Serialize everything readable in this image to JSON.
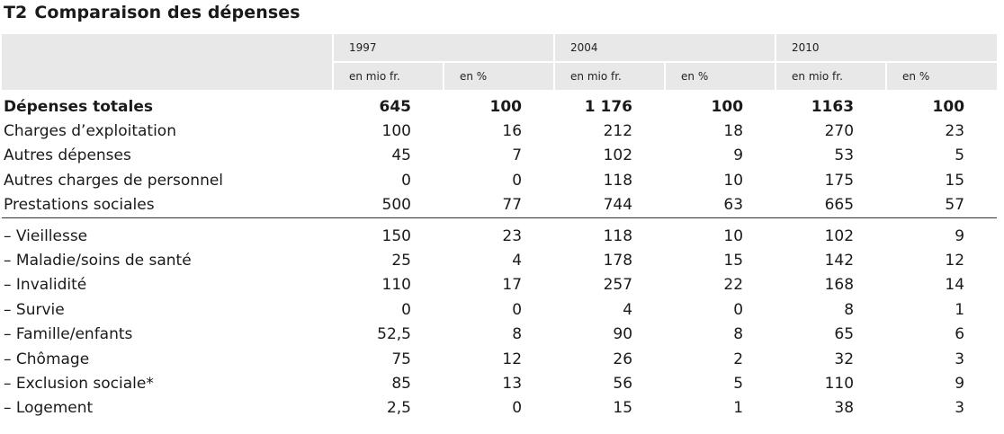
{
  "title": {
    "number": "T2",
    "text": "Comparaison des dépenses"
  },
  "chart_data": {
    "type": "table",
    "years": [
      "1997",
      "2004",
      "2010"
    ],
    "subheaders": [
      "en mio fr.",
      "en %"
    ],
    "rows": [
      {
        "label": "Dépenses totales",
        "values": [
          "645",
          "100",
          "1 176",
          "100",
          "1163",
          "100"
        ],
        "bold": true
      },
      {
        "label": "Charges d’exploitation",
        "values": [
          "100",
          "16",
          "212",
          "18",
          "270",
          "23"
        ]
      },
      {
        "label": "Autres dépenses",
        "values": [
          "45",
          "7",
          "102",
          "9",
          "53",
          "5"
        ]
      },
      {
        "label": "Autres charges de personnel",
        "values": [
          "0",
          "0",
          "118",
          "10",
          "175",
          "15"
        ]
      },
      {
        "label": "Prestations sociales",
        "values": [
          "500",
          "77",
          "744",
          "63",
          "665",
          "57"
        ]
      },
      {
        "label": "– Vieillesse",
        "values": [
          "150",
          "23",
          "118",
          "10",
          "102",
          "9"
        ]
      },
      {
        "label": "– Maladie/soins de santé",
        "values": [
          "25",
          "4",
          "178",
          "15",
          "142",
          "12"
        ]
      },
      {
        "label": "– Invalidité",
        "values": [
          "110",
          "17",
          "257",
          "22",
          "168",
          "14"
        ]
      },
      {
        "label": "– Survie",
        "values": [
          "0",
          "0",
          "4",
          "0",
          "8",
          "1"
        ]
      },
      {
        "label": "– Famille/enfants",
        "values": [
          "52,5",
          "8",
          "90",
          "8",
          "65",
          "6"
        ]
      },
      {
        "label": "– Chômage",
        "values": [
          "75",
          "12",
          "26",
          "2",
          "32",
          "3"
        ]
      },
      {
        "label": "– Exclusion sociale*",
        "values": [
          "85",
          "13",
          "56",
          "5",
          "110",
          "9"
        ]
      },
      {
        "label": "– Logement",
        "values": [
          "2,5",
          "0",
          "15",
          "1",
          "38",
          "3"
        ]
      }
    ]
  }
}
